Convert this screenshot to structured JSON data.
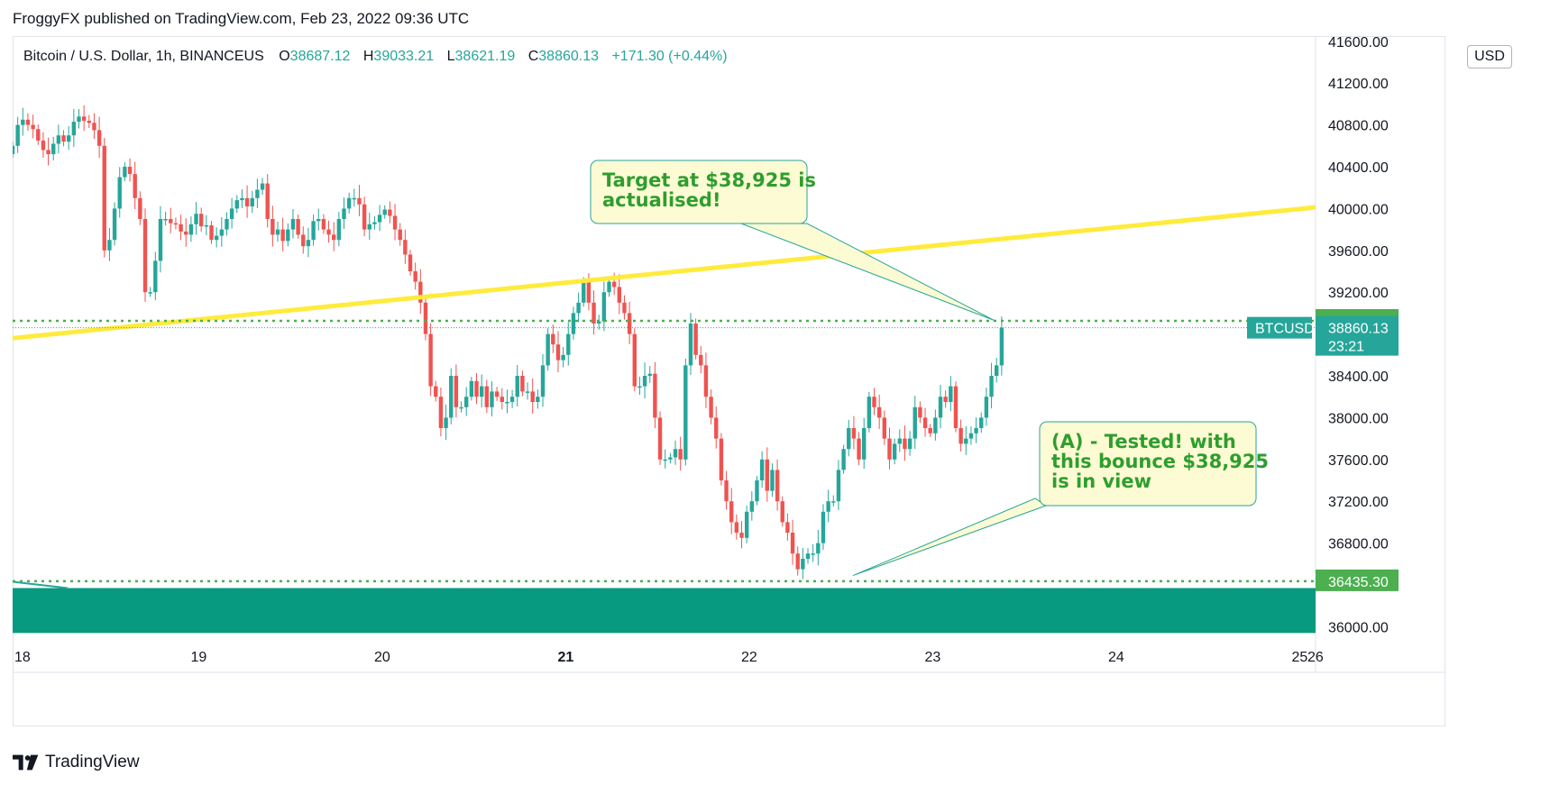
{
  "publisher_line": "FroggyFX published on TradingView.com, Feb 23, 2022 09:36 UTC",
  "legend": {
    "symbol": "Bitcoin / U.S. Dollar, 1h, BINANCEUS",
    "o_label": "O",
    "o_value": "38687.12",
    "h_label": "H",
    "h_value": "39033.21",
    "l_label": "L",
    "l_value": "38621.19",
    "c_label": "C",
    "c_value": "38860.13",
    "change": "+171.30 (+0.44%)"
  },
  "currency_badge": "USD",
  "footer_brand": "TradingView",
  "colors": {
    "up": "#26a69a",
    "down": "#ef5350",
    "trendline": "#ffeb3b",
    "zone": "#089981",
    "level": "#4caf50",
    "callout_bg": "#fdfbd4",
    "callout_border": "#26a69a",
    "callout_text": "#2e9e2e"
  },
  "chart_data": {
    "type": "candlestick",
    "symbol": "BTCUSD",
    "interval": "1h",
    "y_axis": {
      "ticks": [
        36000,
        36400,
        36800,
        37200,
        37600,
        38000,
        38400,
        38800,
        39200,
        39600,
        40000,
        40400,
        40800,
        41200,
        41600
      ],
      "tick_labels": [
        "36000.00",
        "",
        "36800.00",
        "37200.00",
        "37600.00",
        "38000.00",
        "38400.00",
        "",
        "39200.00",
        "39600.00",
        "40000.00",
        "40400.00",
        "40800.00",
        "41200.00",
        "41600.00"
      ],
      "ylim": [
        35900,
        41650
      ]
    },
    "x_axis": {
      "tick_labels": [
        "18",
        "19",
        "20",
        "21",
        "22",
        "23",
        "24",
        "25",
        "26"
      ],
      "tick_days": [
        18,
        19,
        20,
        21,
        22,
        23,
        24,
        25,
        26
      ],
      "xlim_days": [
        18.0,
        26.0
      ]
    },
    "price_labels": [
      {
        "text": "38925.83",
        "price": 38925.83,
        "kind": "level"
      },
      {
        "text": "38860.13",
        "sub": "23:21",
        "price": 38860.13,
        "kind": "last",
        "tag": "BTCUSD"
      },
      {
        "text": "36435.30",
        "price": 36435.3,
        "kind": "level"
      }
    ],
    "levels": [
      {
        "price": 38925.83,
        "style": "dotted"
      },
      {
        "price": 36435.3,
        "style": "dotted"
      }
    ],
    "trendline": {
      "start": {
        "day": 18.0,
        "price": 38760
      },
      "end": {
        "day": 26.0,
        "price": 40170
      }
    },
    "support_zone": {
      "top": 36370,
      "bottom": 35940
    },
    "annotations": [
      {
        "lines": [
          "Target at $38,925 is",
          "actualised!"
        ],
        "anchor": {
          "day": 23.35,
          "price": 38930
        }
      },
      {
        "lines": [
          "(A) - Tested! with",
          "this bounce $38,925",
          "is in view"
        ],
        "anchor": {
          "day": 22.58,
          "price": 36490
        }
      }
    ],
    "candle_count": 128,
    "open_day": 18.0,
    "candle_step_days": 0.04166667,
    "closes": [
      40600,
      40800,
      40850,
      40800,
      40760,
      40650,
      40560,
      40520,
      40620,
      40700,
      40640,
      40700,
      40830,
      40880,
      40840,
      40820,
      40750,
      40600,
      39600,
      39700,
      40000,
      40300,
      40400,
      40330,
      40100,
      39900,
      39200,
      39200,
      39500,
      39900,
      39900,
      39860,
      39850,
      39780,
      39750,
      39850,
      39950,
      39830,
      39840,
      39700,
      39740,
      39800,
      39900,
      40000,
      40080,
      40100,
      40020,
      40100,
      40180,
      40240,
      39900,
      39750,
      39800,
      39690,
      39800,
      39900,
      39750,
      39640,
      39700,
      39880,
      39900,
      39800,
      39750,
      39700,
      39900,
      40000,
      40100,
      40100,
      40040,
      39800,
      39850,
      39870,
      39940,
      39990,
      39930,
      39800,
      39700,
      39560,
      39400,
      39300,
      39100,
      38800,
      38300,
      38200,
      37900,
      38000,
      38400,
      38100,
      38100,
      38200,
      38350,
      38200,
      38300,
      38100,
      38250,
      38200,
      38150,
      38150,
      38200,
      38400,
      38250,
      38250,
      38150,
      38200,
      38500,
      38800,
      38700,
      38550,
      38600,
      38800,
      39000,
      39100,
      39300,
      39100,
      38900,
      38920,
      39200,
      39300,
      39250,
      39100,
      39000,
      38800,
      38300,
      38300,
      38400,
      38420,
      38000,
      37600
    ],
    "note": "Bars listed from 18 Feb 00:00; later bars continue in script-free form below",
    "closes_cont": [
      37600,
      37620,
      37700,
      37600,
      38500,
      38900,
      38600,
      38500,
      38200,
      38000,
      37800,
      37400,
      37200,
      37000,
      36900,
      36850,
      37100,
      37200,
      37400,
      37600,
      37300,
      37500,
      37200,
      37000,
      36900,
      36700,
      36550,
      36650,
      36700,
      36700,
      36800,
      37100,
      37200,
      37200,
      37500,
      37700,
      37900,
      37800,
      37600,
      37900,
      38200,
      38100,
      38000,
      37800,
      37600,
      37750,
      37800,
      37700,
      37800,
      38100,
      38000,
      37900,
      37850,
      38000,
      38200,
      38150,
      38300,
      37900,
      37750,
      37800,
      37850,
      37900,
      38000,
      38200,
      38400,
      38500,
      38860
    ]
  }
}
